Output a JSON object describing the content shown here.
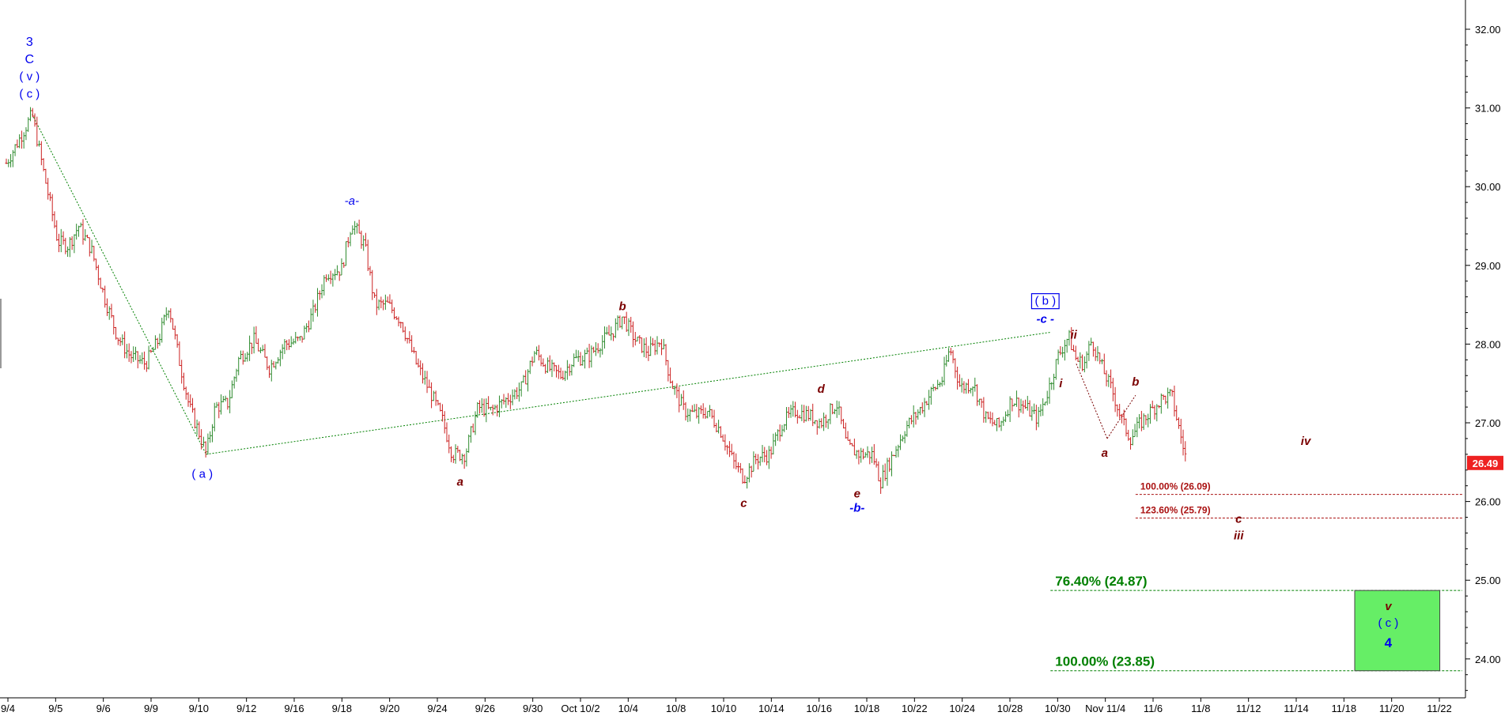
{
  "chart_data": {
    "type": "candlestick",
    "title": "",
    "xlabel": "",
    "ylabel": "",
    "ylim": [
      23.5,
      32.3
    ],
    "y_ticks": [
      "32.00",
      "31.00",
      "30.00",
      "29.00",
      "28.00",
      "27.00",
      "26.00",
      "25.00",
      "24.00"
    ],
    "x_ticks": [
      "9/4",
      "9/5",
      "9/6",
      "9/9",
      "9/10",
      "9/12",
      "9/16",
      "9/18",
      "9/20",
      "9/24",
      "9/26",
      "9/30",
      "Oct 10/2",
      "10/4",
      "10/8",
      "10/10",
      "10/14",
      "10/16",
      "10/18",
      "10/22",
      "10/24",
      "10/28",
      "10/30",
      "Nov 11/4",
      "11/6",
      "11/8",
      "11/12",
      "11/14",
      "11/18",
      "11/20",
      "11/22"
    ],
    "grid": false,
    "last_price": "26.49",
    "colors": {
      "up": "#2e8b2e",
      "down": "#cc2222",
      "blue_wave": "#0000ee",
      "red_wave": "#7a0000",
      "green_fib": "#008000",
      "target_box": "#66ee66",
      "price_badge": "#ee2222"
    },
    "price_path": [
      [
        0,
        30.3
      ],
      [
        0.5,
        30.6
      ],
      [
        1,
        30.92
      ],
      [
        1.5,
        30.1
      ],
      [
        2,
        29.3
      ],
      [
        2.4,
        29.25
      ],
      [
        2.8,
        29.5
      ],
      [
        3.3,
        29.2
      ],
      [
        3.8,
        28.6
      ],
      [
        4.3,
        28.1
      ],
      [
        4.8,
        27.85
      ],
      [
        5.4,
        27.75
      ],
      [
        5.9,
        28.05
      ],
      [
        6.3,
        28.5
      ],
      [
        6.7,
        27.8
      ],
      [
        7.1,
        27.2
      ],
      [
        7.5,
        26.85
      ],
      [
        7.75,
        26.6
      ],
      [
        8.1,
        27.2
      ],
      [
        8.6,
        27.25
      ],
      [
        9.0,
        27.8
      ],
      [
        9.6,
        28.05
      ],
      [
        10.2,
        27.7
      ],
      [
        10.8,
        28.0
      ],
      [
        11.4,
        28.05
      ],
      [
        11.9,
        28.4
      ],
      [
        12.4,
        28.9
      ],
      [
        13.0,
        28.95
      ],
      [
        13.4,
        29.55
      ],
      [
        13.9,
        29.25
      ],
      [
        14.3,
        28.5
      ],
      [
        14.8,
        28.5
      ],
      [
        15.3,
        28.3
      ],
      [
        15.9,
        27.75
      ],
      [
        16.5,
        27.35
      ],
      [
        16.9,
        27.05
      ],
      [
        17.3,
        26.6
      ],
      [
        17.8,
        26.6
      ],
      [
        18.3,
        27.2
      ],
      [
        18.8,
        27.15
      ],
      [
        19.4,
        27.3
      ],
      [
        20.0,
        27.45
      ],
      [
        20.5,
        27.9
      ],
      [
        21.0,
        27.7
      ],
      [
        21.5,
        27.6
      ],
      [
        22.0,
        27.8
      ],
      [
        22.6,
        27.85
      ],
      [
        23.0,
        28.0
      ],
      [
        23.5,
        28.15
      ],
      [
        23.9,
        28.35
      ],
      [
        24.4,
        28.05
      ],
      [
        24.9,
        27.9
      ],
      [
        25.4,
        28.05
      ],
      [
        25.8,
        27.5
      ],
      [
        26.3,
        27.15
      ],
      [
        26.8,
        27.1
      ],
      [
        27.2,
        27.15
      ],
      [
        27.7,
        26.9
      ],
      [
        28.2,
        26.5
      ],
      [
        28.6,
        26.3
      ],
      [
        29.1,
        26.55
      ],
      [
        29.6,
        26.6
      ],
      [
        30.1,
        27.0
      ],
      [
        30.6,
        27.15
      ],
      [
        31.1,
        27.1
      ],
      [
        31.6,
        27.0
      ],
      [
        32.2,
        27.25
      ],
      [
        32.6,
        26.7
      ],
      [
        33.1,
        26.6
      ],
      [
        33.6,
        26.6
      ],
      [
        33.9,
        26.25
      ],
      [
        34.4,
        26.6
      ],
      [
        34.9,
        26.95
      ],
      [
        35.4,
        27.15
      ],
      [
        35.9,
        27.4
      ],
      [
        36.3,
        27.55
      ],
      [
        36.6,
        27.95
      ],
      [
        37.0,
        27.45
      ],
      [
        37.5,
        27.5
      ],
      [
        38.0,
        27.05
      ],
      [
        38.5,
        26.95
      ],
      [
        39.0,
        27.3
      ],
      [
        39.5,
        27.2
      ],
      [
        40.0,
        27.05
      ],
      [
        40.4,
        27.4
      ],
      [
        40.8,
        27.85
      ],
      [
        41.2,
        28.1
      ],
      [
        41.5,
        27.8
      ],
      [
        41.8,
        27.75
      ],
      [
        42.1,
        28.05
      ],
      [
        42.5,
        27.7
      ],
      [
        42.9,
        27.4
      ],
      [
        43.3,
        27.0
      ],
      [
        43.6,
        26.8
      ],
      [
        44.0,
        27.0
      ],
      [
        44.4,
        27.15
      ],
      [
        44.8,
        27.3
      ],
      [
        45.2,
        27.35
      ],
      [
        45.5,
        26.9
      ],
      [
        45.8,
        26.49
      ]
    ],
    "wave_labels": [
      {
        "text": "3",
        "x": 0.9,
        "y": 31.79,
        "color": "blue",
        "size": 16,
        "bold": false
      },
      {
        "text": "C",
        "x": 0.9,
        "y": 31.57,
        "color": "blue",
        "size": 16,
        "bold": false
      },
      {
        "text": "( v )",
        "x": 0.9,
        "y": 31.35,
        "color": "blue",
        "size": 15,
        "bold": false
      },
      {
        "text": "( c )",
        "x": 0.9,
        "y": 31.13,
        "color": "blue",
        "size": 15,
        "bold": false
      },
      {
        "text": "-a-",
        "x": 13.4,
        "y": 29.77,
        "color": "blue",
        "size": 15,
        "italic": true
      },
      {
        "text": "( a )",
        "x": 7.6,
        "y": 26.3,
        "color": "blue",
        "size": 15
      },
      {
        "text": "a",
        "x": 17.6,
        "y": 26.2,
        "color": "red",
        "size": 15,
        "italic": true,
        "bold": true
      },
      {
        "text": "b",
        "x": 23.9,
        "y": 28.43,
        "color": "red",
        "size": 15,
        "italic": true,
        "bold": true
      },
      {
        "text": "c",
        "x": 28.6,
        "y": 25.93,
        "color": "red",
        "size": 15,
        "italic": true,
        "bold": true
      },
      {
        "text": "d",
        "x": 31.6,
        "y": 27.38,
        "color": "red",
        "size": 15,
        "italic": true,
        "bold": true
      },
      {
        "text": "e",
        "x": 33.0,
        "y": 26.05,
        "color": "red",
        "size": 15,
        "italic": true,
        "bold": true
      },
      {
        "text": "-b-",
        "x": 33.0,
        "y": 25.87,
        "color": "blue",
        "size": 15,
        "italic": true,
        "bold": true
      },
      {
        "text": "-c -",
        "x": 40.3,
        "y": 28.27,
        "color": "blue",
        "size": 15,
        "italic": true,
        "bold": true
      },
      {
        "text": "( b )",
        "x": 40.3,
        "y": 28.5,
        "color": "blue",
        "size": 15,
        "boxed": true
      },
      {
        "text": "ii",
        "x": 41.4,
        "y": 28.07,
        "color": "red",
        "size": 15,
        "italic": true,
        "bold": true
      },
      {
        "text": "i",
        "x": 40.9,
        "y": 27.45,
        "color": "red",
        "size": 15,
        "italic": true,
        "bold": true
      },
      {
        "text": "a",
        "x": 42.6,
        "y": 26.57,
        "color": "red",
        "size": 15,
        "italic": true,
        "bold": true
      },
      {
        "text": "b",
        "x": 43.8,
        "y": 27.47,
        "color": "red",
        "size": 15,
        "italic": true,
        "bold": true
      },
      {
        "text": "iv",
        "x": 50.4,
        "y": 26.72,
        "color": "red",
        "size": 15,
        "italic": true,
        "bold": true
      },
      {
        "text": "c",
        "x": 47.8,
        "y": 25.73,
        "color": "red",
        "size": 15,
        "italic": true,
        "bold": true
      },
      {
        "text": "iii",
        "x": 47.8,
        "y": 25.52,
        "color": "red",
        "size": 15,
        "italic": true,
        "bold": true
      },
      {
        "text": "v",
        "x": 53.6,
        "y": 24.62,
        "color": "red",
        "size": 15,
        "italic": true,
        "bold": true
      },
      {
        "text": "( c )",
        "x": 53.6,
        "y": 24.41,
        "color": "blue",
        "size": 15
      },
      {
        "text": "4",
        "x": 53.6,
        "y": 24.15,
        "color": "blue",
        "size": 17,
        "bold": true
      }
    ],
    "trend_lines": [
      {
        "from": [
          1,
          30.92
        ],
        "to": [
          7.75,
          26.6
        ],
        "color": "green"
      },
      {
        "from": [
          7.75,
          26.6
        ],
        "to": [
          40.5,
          28.15
        ],
        "color": "green"
      },
      {
        "from": [
          41.5,
          27.75
        ],
        "to": [
          42.7,
          26.8
        ],
        "color": "red"
      },
      {
        "from": [
          42.7,
          26.8
        ],
        "to": [
          43.8,
          27.35
        ],
        "color": "red"
      }
    ],
    "fib_levels": [
      {
        "label": "100.00% (26.09)",
        "price": 26.09,
        "color": "red",
        "x_start": 43.8
      },
      {
        "label": "123.60% (25.79)",
        "price": 25.79,
        "color": "red",
        "x_start": 43.8
      },
      {
        "label": "76.40% (24.87)",
        "price": 24.87,
        "color": "green",
        "x_start": 40.5
      },
      {
        "label": "100.00% (23.85)",
        "price": 23.85,
        "color": "green",
        "x_start": 40.5
      }
    ],
    "target_box": {
      "x_from": 52.3,
      "x_to": 55.6,
      "y_from": 23.85,
      "y_to": 24.87
    }
  }
}
